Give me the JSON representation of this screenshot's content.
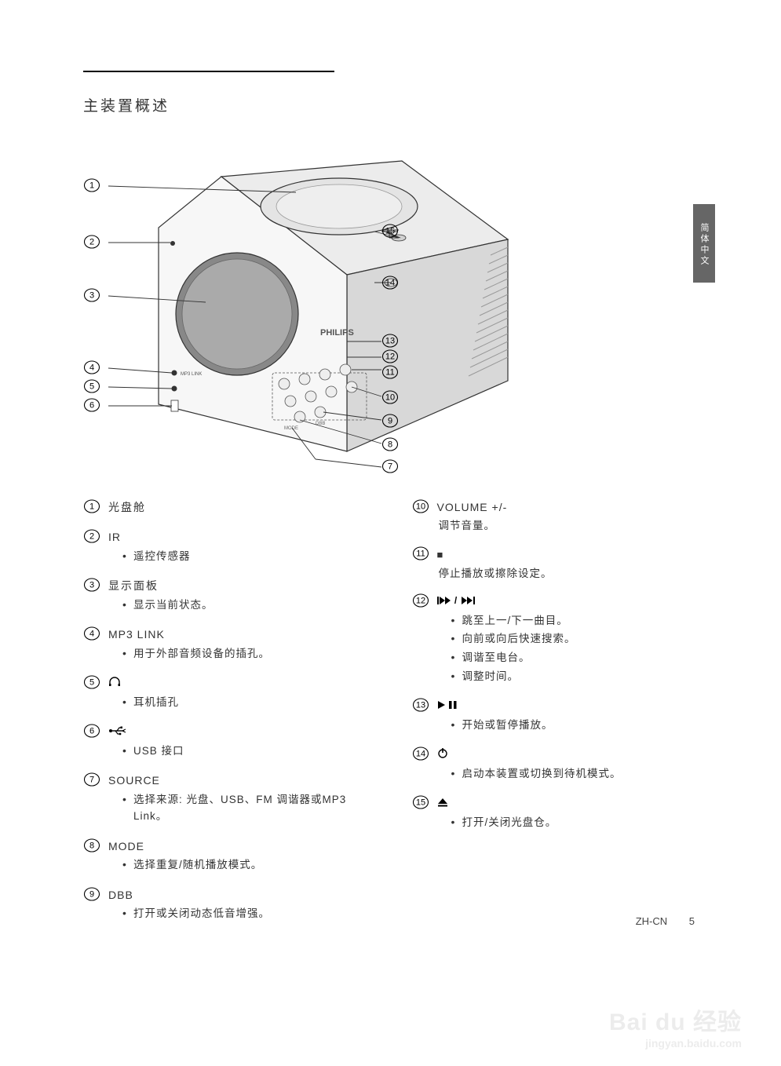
{
  "section_title": "主装置概述",
  "side_tab": "简体中文",
  "footer_lang": "ZH-CN",
  "footer_page": "5",
  "watermark_main": "Bai du 经验",
  "watermark_sub": "jingyan.baidu.com",
  "diagram": {
    "brand": "PHILIPS",
    "left_callouts": [
      1,
      2,
      3,
      4,
      5,
      6
    ],
    "right_callouts": [
      15,
      14,
      13,
      12,
      11,
      10,
      9,
      8,
      7
    ],
    "colors": {
      "stroke": "#333333",
      "fill_light": "#f4f4f4",
      "fill_mid": "#dcdcdc",
      "fill_dark": "#bfbfbf"
    }
  },
  "items_left": [
    {
      "n": 1,
      "title": "光盘舱",
      "title_cjk": true,
      "subs": []
    },
    {
      "n": 2,
      "title": "IR",
      "subs": [
        "遥控传感器"
      ]
    },
    {
      "n": 3,
      "title": "显示面板",
      "title_cjk": true,
      "subs": [
        "显示当前状态。"
      ]
    },
    {
      "n": 4,
      "title": "MP3 LINK",
      "subs": [
        "用于外部音频设备的插孔。"
      ]
    },
    {
      "n": 5,
      "icon": "headphone",
      "subs": [
        "耳机插孔"
      ]
    },
    {
      "n": 6,
      "icon": "usb",
      "subs": [
        "USB 接口"
      ]
    },
    {
      "n": 7,
      "title": "SOURCE",
      "subs": [
        "选择来源: 光盘、USB、FM 调谐器或MP3 Link。"
      ]
    },
    {
      "n": 8,
      "title": "MODE",
      "subs": [
        "选择重复/随机播放模式。"
      ]
    },
    {
      "n": 9,
      "title": "DBB",
      "subs": [
        "打开或关闭动态低音增强。"
      ]
    }
  ],
  "items_right": [
    {
      "n": 10,
      "title": "VOLUME +/-",
      "subtitle": "调节音量。"
    },
    {
      "n": 11,
      "icon": "stop",
      "subtitle": "停止播放或擦除设定。"
    },
    {
      "n": 12,
      "icon": "skip",
      "subs": [
        "跳至上一/下一曲目。",
        "向前或向后快速搜索。",
        "调谐至电台。",
        "调整时间。"
      ]
    },
    {
      "n": 13,
      "icon": "playpause",
      "subs": [
        "开始或暂停播放。"
      ]
    },
    {
      "n": 14,
      "icon": "power",
      "subs": [
        "启动本装置或切换到待机模式。"
      ]
    },
    {
      "n": 15,
      "icon": "eject",
      "subs": [
        "打开/关闭光盘仓。"
      ]
    }
  ],
  "icons": {
    "headphone": "∩",
    "usb": "⊷",
    "stop": "■",
    "skip": "I◀◀/▶▶I",
    "playpause": "▶ I I",
    "power": "⏻",
    "eject": "▲"
  }
}
